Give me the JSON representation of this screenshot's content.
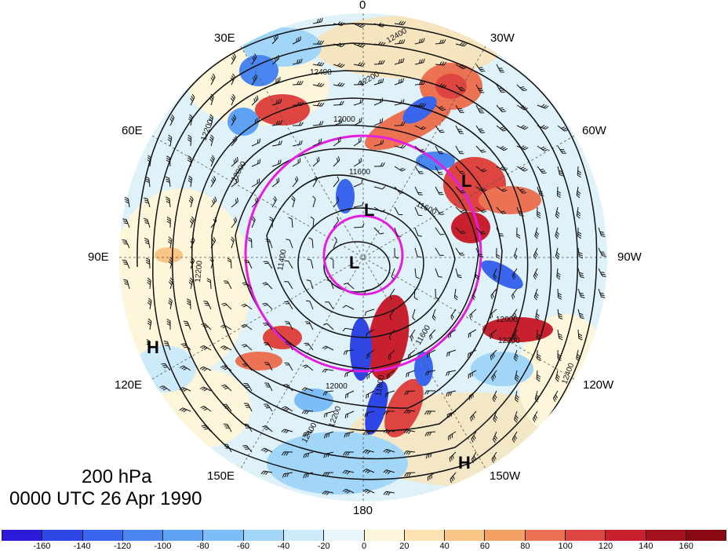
{
  "figure": {
    "level": "200 hPa",
    "time": "0000 UTC 26 Apr 1990",
    "longitude_labels": [
      "0",
      "30W",
      "60W",
      "90W",
      "120W",
      "150W",
      "180",
      "150E",
      "120E",
      "90E",
      "60E",
      "30E"
    ],
    "pressure_centers": [
      "L",
      "L",
      "L",
      "H",
      "H"
    ],
    "contour_labels": [
      "12400",
      "12400",
      "12200",
      "12200",
      "12000",
      "12000",
      "11600",
      "11600",
      "11400",
      "12200",
      "12000",
      "12200",
      "11800",
      "11600",
      "12400",
      "12400",
      "12200",
      "12000"
    ]
  },
  "colorbar": {
    "ticks": [
      "-160",
      "-140",
      "-120",
      "-100",
      "-80",
      "-60",
      "-40",
      "-20",
      "0",
      "20",
      "40",
      "60",
      "80",
      "100",
      "120",
      "140",
      "160"
    ],
    "colors": [
      "#2b1bd9",
      "#2f46e6",
      "#3a66ee",
      "#4a86f2",
      "#5fa2f5",
      "#7dbdf7",
      "#a2d6f8",
      "#cdeafa",
      "#e9f6fb",
      "#fdf6da",
      "#fbe2b0",
      "#f8c585",
      "#f4a064",
      "#ec7254",
      "#de4440",
      "#c8202f",
      "#a3101e"
    ]
  },
  "colors": {
    "contour": "#111111",
    "ring": "#e21ee0",
    "background": "#ffffff"
  }
}
